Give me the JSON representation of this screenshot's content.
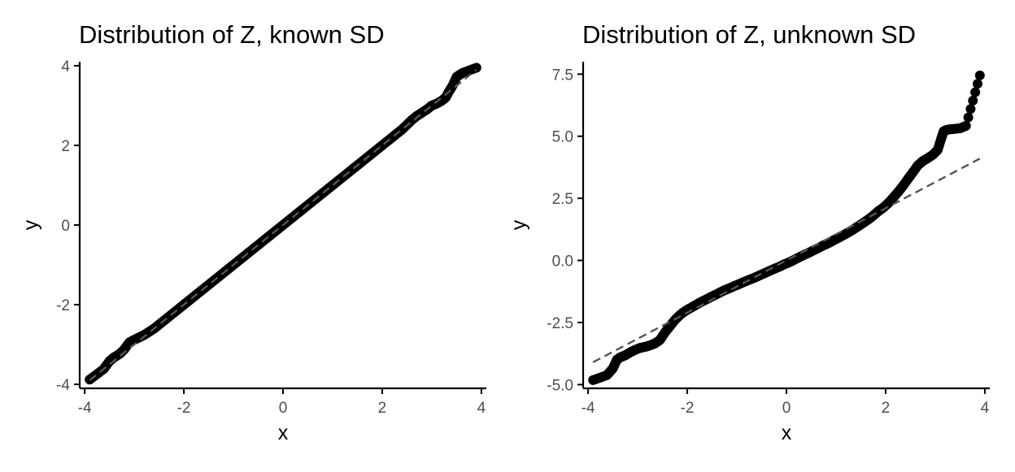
{
  "chart_data": [
    {
      "type": "scatter",
      "title": "Distribution of Z, known SD",
      "xlabel": "x",
      "ylabel": "y",
      "xlim": [
        -4.1,
        4.1
      ],
      "ylim": [
        -4.1,
        4.1
      ],
      "x_ticks": [
        -4,
        -2,
        0,
        2,
        4
      ],
      "x_tick_labels": [
        "-4",
        "-2",
        "0",
        "2",
        "4"
      ],
      "y_ticks": [
        -4,
        -2,
        0,
        2,
        4
      ],
      "y_tick_labels": [
        "-4",
        "-2",
        "0",
        "2",
        "4"
      ],
      "grid": false,
      "reference_line": {
        "style": "dashed",
        "color": "#555555",
        "x": [
          -3.9,
          3.9
        ],
        "y": [
          -3.9,
          3.9
        ]
      },
      "series": [
        {
          "marker_color": "#000000",
          "x": [
            -3.9,
            -3.62,
            -3.5,
            -3.42,
            -3.35,
            -3.28,
            -3.2,
            -3.1,
            -3.0,
            -2.9,
            -2.8,
            -2.7,
            -2.6,
            -2.5,
            -2.4,
            -2.3,
            -2.2,
            -2.1,
            -2.0,
            -1.9,
            -1.8,
            -1.7,
            -1.6,
            -1.5,
            -1.4,
            -1.3,
            -1.2,
            -1.1,
            -1.0,
            -0.9,
            -0.8,
            -0.7,
            -0.6,
            -0.5,
            -0.4,
            -0.3,
            -0.2,
            -0.1,
            0.0,
            0.1,
            0.2,
            0.3,
            0.4,
            0.5,
            0.6,
            0.7,
            0.8,
            0.9,
            1.0,
            1.1,
            1.2,
            1.3,
            1.4,
            1.5,
            1.6,
            1.7,
            1.8,
            1.9,
            2.0,
            2.1,
            2.2,
            2.3,
            2.4,
            2.5,
            2.6,
            2.7,
            2.8,
            2.9,
            3.0,
            3.1,
            3.2,
            3.28,
            3.35,
            3.42,
            3.5,
            3.62,
            3.9
          ],
          "y": [
            -3.88,
            -3.62,
            -3.42,
            -3.33,
            -3.28,
            -3.22,
            -3.12,
            -2.95,
            -2.88,
            -2.82,
            -2.76,
            -2.68,
            -2.6,
            -2.5,
            -2.4,
            -2.3,
            -2.2,
            -2.1,
            -2.0,
            -1.9,
            -1.8,
            -1.7,
            -1.6,
            -1.5,
            -1.4,
            -1.3,
            -1.2,
            -1.1,
            -1.0,
            -0.9,
            -0.8,
            -0.7,
            -0.6,
            -0.5,
            -0.4,
            -0.3,
            -0.2,
            -0.1,
            0.0,
            0.1,
            0.2,
            0.3,
            0.4,
            0.5,
            0.6,
            0.7,
            0.8,
            0.9,
            1.0,
            1.1,
            1.2,
            1.3,
            1.4,
            1.5,
            1.6,
            1.7,
            1.8,
            1.9,
            2.0,
            2.1,
            2.2,
            2.3,
            2.4,
            2.52,
            2.64,
            2.74,
            2.82,
            2.9,
            3.0,
            3.05,
            3.12,
            3.2,
            3.36,
            3.5,
            3.72,
            3.82,
            3.95
          ]
        }
      ]
    },
    {
      "type": "scatter",
      "title": "Distribution of Z, unknown SD",
      "xlabel": "x",
      "ylabel": "y",
      "xlim": [
        -4.1,
        4.1
      ],
      "ylim": [
        -5.15,
        8.0
      ],
      "x_ticks": [
        -4,
        -2,
        0,
        2,
        4
      ],
      "x_tick_labels": [
        "-4",
        "-2",
        "0",
        "2",
        "4"
      ],
      "y_ticks": [
        -5.0,
        -2.5,
        0.0,
        2.5,
        5.0,
        7.5
      ],
      "y_tick_labels": [
        "-5.0",
        "-2.5",
        "0.0",
        "2.5",
        "5.0",
        "7.5"
      ],
      "grid": false,
      "reference_line": {
        "style": "dashed",
        "color": "#555555",
        "x": [
          -3.9,
          3.9
        ],
        "y": [
          -4.1,
          4.1
        ]
      },
      "series": [
        {
          "marker_color": "#000000",
          "x": [
            -3.9,
            -3.62,
            -3.5,
            -3.42,
            -3.35,
            -3.25,
            -3.15,
            -3.05,
            -2.95,
            -2.85,
            -2.75,
            -2.65,
            -2.55,
            -2.45,
            -2.35,
            -2.25,
            -2.15,
            -2.05,
            -1.95,
            -1.85,
            -1.75,
            -1.65,
            -1.55,
            -1.45,
            -1.35,
            -1.25,
            -1.15,
            -1.05,
            -0.95,
            -0.85,
            -0.75,
            -0.65,
            -0.55,
            -0.45,
            -0.35,
            -0.25,
            -0.15,
            -0.05,
            0.05,
            0.15,
            0.25,
            0.35,
            0.45,
            0.55,
            0.65,
            0.75,
            0.85,
            0.95,
            1.05,
            1.15,
            1.25,
            1.35,
            1.45,
            1.55,
            1.65,
            1.75,
            1.85,
            1.95,
            2.05,
            2.15,
            2.25,
            2.35,
            2.45,
            2.55,
            2.65,
            2.75,
            2.85,
            2.95,
            3.05,
            3.12,
            3.17,
            3.22,
            3.3,
            3.4,
            3.5,
            3.62,
            3.9
          ],
          "y": [
            -4.82,
            -4.62,
            -4.35,
            -4.0,
            -3.9,
            -3.82,
            -3.7,
            -3.6,
            -3.52,
            -3.48,
            -3.42,
            -3.34,
            -3.2,
            -2.9,
            -2.65,
            -2.4,
            -2.2,
            -2.05,
            -1.93,
            -1.82,
            -1.7,
            -1.6,
            -1.5,
            -1.4,
            -1.3,
            -1.2,
            -1.12,
            -1.03,
            -0.95,
            -0.86,
            -0.78,
            -0.7,
            -0.61,
            -0.52,
            -0.43,
            -0.34,
            -0.26,
            -0.16,
            -0.08,
            0.02,
            0.12,
            0.22,
            0.31,
            0.41,
            0.51,
            0.61,
            0.7,
            0.81,
            0.91,
            1.02,
            1.13,
            1.25,
            1.38,
            1.51,
            1.65,
            1.8,
            1.98,
            2.12,
            2.3,
            2.52,
            2.75,
            3.0,
            3.28,
            3.55,
            3.83,
            4.0,
            4.12,
            4.25,
            4.45,
            4.9,
            5.2,
            5.25,
            5.28,
            5.3,
            5.32,
            5.42,
            7.45
          ]
        }
      ]
    }
  ]
}
